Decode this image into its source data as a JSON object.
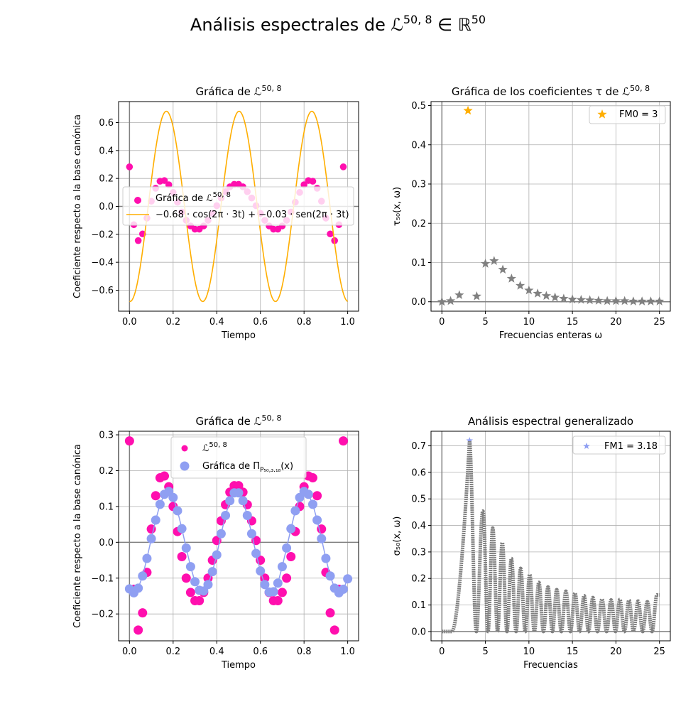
{
  "figure": {
    "suptitle": "Análisis espectrales de ℒ",
    "suptitle_sup": "50, 8",
    "suptitle_tail": " ∈ ℝ",
    "suptitle_tail_sup": "50"
  },
  "colors": {
    "magenta": "#ff0fae",
    "lilac": "#8f9ff2",
    "orange": "#ffae00",
    "gray": "#808080",
    "grid": "#b0b0b0"
  },
  "chart_data": [
    {
      "id": "p1",
      "type": "scatter",
      "title": "Gráfica de ℒ",
      "title_sup": "50, 8",
      "xlabel": "Tiempo",
      "ylabel": "Coeficiente respecto a la base canónica",
      "xlim": [
        -0.05,
        1.05
      ],
      "ylim": [
        -0.75,
        0.75
      ],
      "xticks": [
        0.0,
        0.2,
        0.4,
        0.6,
        0.8,
        1.0
      ],
      "xticklabels": [
        "0.0",
        "0.2",
        "0.4",
        "0.6",
        "0.8",
        "1.0"
      ],
      "yticks": [
        -0.6,
        -0.4,
        -0.2,
        0.0,
        0.2,
        0.4,
        0.6
      ],
      "yticklabels": [
        "−0.6",
        "−0.4",
        "−0.2",
        "0.0",
        "0.2",
        "0.4",
        "0.6"
      ],
      "grid": true,
      "legend_position": "center-left",
      "series": [
        {
          "name": "Gráfica de ℒ",
          "name_sup": "50, 8",
          "kind": "scatter",
          "color": "#ff0fae",
          "x": [
            0.0,
            0.02,
            0.04,
            0.06,
            0.08,
            0.1,
            0.12,
            0.14,
            0.16,
            0.18,
            0.2,
            0.22,
            0.24,
            0.26,
            0.28,
            0.3,
            0.32,
            0.34,
            0.36,
            0.38,
            0.4,
            0.42,
            0.44,
            0.46,
            0.48,
            0.5,
            0.52,
            0.54,
            0.56,
            0.58,
            0.6,
            0.62,
            0.64,
            0.66,
            0.68,
            0.7,
            0.72,
            0.74,
            0.76,
            0.78,
            0.8,
            0.82,
            0.84,
            0.86,
            0.88,
            0.9,
            0.92,
            0.94,
            0.96,
            0.98
          ],
          "y": [
            0.283,
            -0.131,
            -0.245,
            -0.197,
            -0.084,
            0.037,
            0.13,
            0.18,
            0.185,
            0.155,
            0.1,
            0.03,
            -0.04,
            -0.1,
            -0.14,
            -0.163,
            -0.163,
            -0.14,
            -0.1,
            -0.05,
            0.005,
            0.06,
            0.105,
            0.14,
            0.158,
            0.158,
            0.14,
            0.105,
            0.06,
            0.005,
            -0.05,
            -0.1,
            -0.14,
            -0.163,
            -0.163,
            -0.14,
            -0.1,
            -0.04,
            0.03,
            0.1,
            0.155,
            0.185,
            0.18,
            0.13,
            0.037,
            -0.084,
            -0.197,
            -0.245,
            -0.131,
            0.283
          ]
        },
        {
          "name": "−0.68 · cos(2π · 3t) + −0.03 · sen(2π · 3t)",
          "kind": "line",
          "color": "#ffae00",
          "function": {
            "a": -0.68,
            "b": -0.03,
            "freq": 3,
            "tmin": 0,
            "tmax": 1
          }
        }
      ]
    },
    {
      "id": "p2",
      "type": "scatter",
      "title": "Gráfica de los coeficientes τ de ℒ",
      "title_sup": "50, 8",
      "xlabel": "Frecuencias enteras ω",
      "ylabel": "τ₅₀(x, ω)",
      "xlim": [
        -1.25,
        26.25
      ],
      "ylim": [
        -0.024,
        0.51
      ],
      "xticks": [
        0,
        5,
        10,
        15,
        20,
        25
      ],
      "xticklabels": [
        "0",
        "5",
        "10",
        "15",
        "20",
        "25"
      ],
      "yticks": [
        0.0,
        0.1,
        0.2,
        0.3,
        0.4,
        0.5
      ],
      "yticklabels": [
        "0.0",
        "0.1",
        "0.2",
        "0.3",
        "0.4",
        "0.5"
      ],
      "grid": true,
      "legend_position": "top-right",
      "series": [
        {
          "name": "FM0 = 3",
          "kind": "star",
          "color": "#ffae00",
          "x": [
            3
          ],
          "y": [
            0.487
          ]
        },
        {
          "kind": "star",
          "color": "#808080",
          "x": [
            0,
            1,
            2,
            4,
            5,
            6,
            7,
            8,
            9,
            10,
            11,
            12,
            13,
            14,
            15,
            16,
            17,
            18,
            19,
            20,
            21,
            22,
            23,
            24,
            25
          ],
          "y": [
            0.0,
            0.002,
            0.017,
            0.014,
            0.097,
            0.104,
            0.082,
            0.059,
            0.041,
            0.029,
            0.021,
            0.015,
            0.011,
            0.008,
            0.006,
            0.005,
            0.004,
            0.003,
            0.002,
            0.002,
            0.002,
            0.001,
            0.001,
            0.001,
            0.001
          ]
        }
      ]
    },
    {
      "id": "p3",
      "type": "scatter",
      "title": "Gráfica de ℒ",
      "title_sup": "50, 8",
      "xlabel": "Tiempo",
      "ylabel": "Coeficiente respecto a la base canónica",
      "xlim": [
        -0.05,
        1.05
      ],
      "ylim": [
        -0.275,
        0.31
      ],
      "xticks": [
        0.0,
        0.2,
        0.4,
        0.6,
        0.8,
        1.0
      ],
      "xticklabels": [
        "0.0",
        "0.2",
        "0.4",
        "0.6",
        "0.8",
        "1.0"
      ],
      "yticks": [
        -0.2,
        -0.1,
        0.0,
        0.1,
        0.2,
        0.3
      ],
      "yticklabels": [
        "−0.2",
        "−0.1",
        "0.0",
        "0.1",
        "0.2",
        "0.3"
      ],
      "grid": true,
      "legend_position": "upper-center",
      "series": [
        {
          "name": "ℒ",
          "name_sup": "50, 8",
          "kind": "scatter",
          "color": "#ff0fae",
          "x": [
            0.0,
            0.02,
            0.04,
            0.06,
            0.08,
            0.1,
            0.12,
            0.14,
            0.16,
            0.18,
            0.2,
            0.22,
            0.24,
            0.26,
            0.28,
            0.3,
            0.32,
            0.34,
            0.36,
            0.38,
            0.4,
            0.42,
            0.44,
            0.46,
            0.48,
            0.5,
            0.52,
            0.54,
            0.56,
            0.58,
            0.6,
            0.62,
            0.64,
            0.66,
            0.68,
            0.7,
            0.72,
            0.74,
            0.76,
            0.78,
            0.8,
            0.82,
            0.84,
            0.86,
            0.88,
            0.9,
            0.92,
            0.94,
            0.96,
            0.98
          ],
          "y": [
            0.283,
            -0.131,
            -0.245,
            -0.197,
            -0.084,
            0.037,
            0.13,
            0.18,
            0.185,
            0.155,
            0.1,
            0.03,
            -0.04,
            -0.1,
            -0.14,
            -0.163,
            -0.163,
            -0.14,
            -0.1,
            -0.05,
            0.005,
            0.06,
            0.105,
            0.14,
            0.158,
            0.158,
            0.14,
            0.105,
            0.06,
            0.005,
            -0.05,
            -0.1,
            -0.14,
            -0.163,
            -0.163,
            -0.14,
            -0.1,
            -0.04,
            0.03,
            0.1,
            0.155,
            0.185,
            0.18,
            0.13,
            0.037,
            -0.084,
            -0.197,
            -0.245,
            -0.131,
            0.283
          ]
        },
        {
          "name": "Gráfica de Π",
          "name_sub": "P₅₀,₃.₁₈",
          "name_tail": "(x)",
          "kind": "line-markers",
          "color": "#8f9ff2",
          "x": [
            0.0,
            0.02,
            0.04,
            0.06,
            0.08,
            0.1,
            0.12,
            0.14,
            0.16,
            0.18,
            0.2,
            0.22,
            0.24,
            0.26,
            0.28,
            0.3,
            0.32,
            0.34,
            0.36,
            0.38,
            0.4,
            0.42,
            0.44,
            0.46,
            0.48,
            0.5,
            0.52,
            0.54,
            0.56,
            0.58,
            0.6,
            0.62,
            0.64,
            0.66,
            0.68,
            0.7,
            0.72,
            0.74,
            0.76,
            0.78,
            0.8,
            0.82,
            0.84,
            0.86,
            0.88,
            0.9,
            0.92,
            0.94,
            0.96,
            0.98,
            1.0
          ],
          "y": [
            -0.13,
            -0.141,
            -0.128,
            -0.094,
            -0.045,
            0.01,
            0.062,
            0.106,
            0.134,
            0.142,
            0.125,
            0.088,
            0.038,
            -0.016,
            -0.068,
            -0.11,
            -0.134,
            -0.136,
            -0.118,
            -0.082,
            -0.035,
            0.024,
            0.075,
            0.116,
            0.138,
            0.138,
            0.116,
            0.075,
            0.024,
            -0.031,
            -0.08,
            -0.118,
            -0.139,
            -0.138,
            -0.114,
            -0.068,
            -0.016,
            0.038,
            0.088,
            0.125,
            0.142,
            0.134,
            0.106,
            0.062,
            0.01,
            -0.045,
            -0.094,
            -0.128,
            -0.141,
            -0.131,
            -0.102
          ]
        }
      ]
    },
    {
      "id": "p4",
      "type": "line",
      "title": "Análisis espectral generalizado",
      "xlabel": "Frecuencias",
      "ylabel": "σ₅₀(x, ω)",
      "xlim": [
        -1.25,
        26.25
      ],
      "ylim": [
        -0.035,
        0.755
      ],
      "xticks": [
        0,
        5,
        10,
        15,
        20,
        25
      ],
      "xticklabels": [
        "0",
        "5",
        "10",
        "15",
        "20",
        "25"
      ],
      "yticks": [
        0.0,
        0.1,
        0.2,
        0.3,
        0.4,
        0.5,
        0.6,
        0.7
      ],
      "yticklabels": [
        "0.0",
        "0.1",
        "0.2",
        "0.3",
        "0.4",
        "0.5",
        "0.6",
        "0.7"
      ],
      "grid": true,
      "legend_position": "top-right",
      "series": [
        {
          "name": "FM1 = 3.18",
          "kind": "star",
          "color": "#8f9ff2",
          "x": [
            3.18
          ],
          "y": [
            0.72
          ]
        },
        {
          "kind": "oscillation",
          "color": "#808080",
          "x_range": [
            0,
            25
          ],
          "peaks": [
            {
              "x": 3.18,
              "y": 0.72
            },
            {
              "x": 4.75,
              "y": 0.45
            },
            {
              "x": 5.85,
              "y": 0.39
            },
            {
              "x": 6.95,
              "y": 0.335
            },
            {
              "x": 8.0,
              "y": 0.275
            },
            {
              "x": 9.05,
              "y": 0.238
            },
            {
              "x": 10.1,
              "y": 0.215
            },
            {
              "x": 11.15,
              "y": 0.185
            },
            {
              "x": 12.2,
              "y": 0.168
            },
            {
              "x": 13.2,
              "y": 0.158
            },
            {
              "x": 14.25,
              "y": 0.152
            },
            {
              "x": 15.3,
              "y": 0.145
            },
            {
              "x": 16.35,
              "y": 0.135
            },
            {
              "x": 17.35,
              "y": 0.128
            },
            {
              "x": 18.4,
              "y": 0.122
            },
            {
              "x": 19.45,
              "y": 0.119
            },
            {
              "x": 20.45,
              "y": 0.121
            },
            {
              "x": 21.5,
              "y": 0.118
            },
            {
              "x": 22.55,
              "y": 0.115
            },
            {
              "x": 23.6,
              "y": 0.112
            },
            {
              "x": 24.7,
              "y": 0.138
            }
          ]
        }
      ]
    }
  ]
}
